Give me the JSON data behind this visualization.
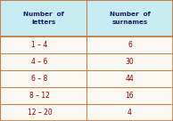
{
  "col1_header": "Number  of\nletters",
  "col2_header": "Number  of\nsurnames",
  "rows": [
    [
      "1 – 4",
      "6"
    ],
    [
      "4 – 6",
      "30"
    ],
    [
      "6 – 8",
      "44"
    ],
    [
      "8 – 12",
      "16"
    ],
    [
      "12 – 20",
      "4"
    ]
  ],
  "header_bg": "#c8ecf4",
  "row_bg": "#faf8f0",
  "border_color": "#c87840",
  "text_color": "#8B0000",
  "header_text_color": "#1a1a6e",
  "figsize": [
    1.94,
    1.36
  ],
  "dpi": 100
}
